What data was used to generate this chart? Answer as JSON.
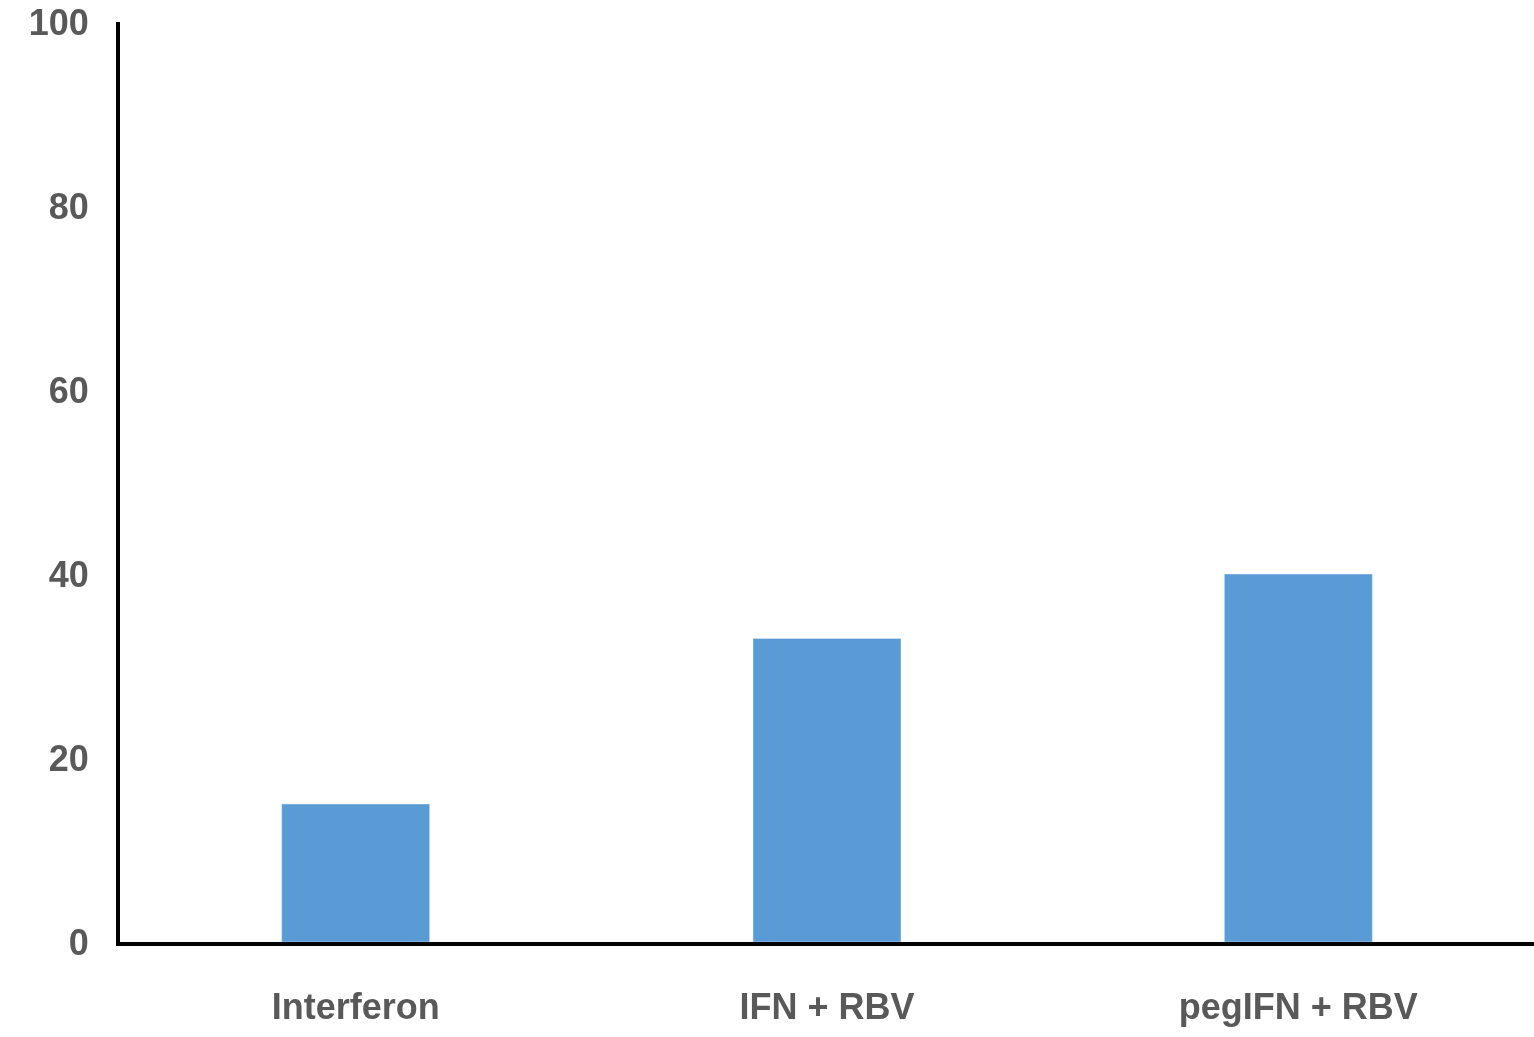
{
  "chart_data": {
    "type": "bar",
    "categories": [
      "Interferon",
      "IFN + RBV",
      "pegIFN + RBV"
    ],
    "values": [
      15,
      33,
      40
    ],
    "color": "#5b9bd5",
    "ylim": [
      0,
      100
    ],
    "yticks": [
      0,
      20,
      40,
      60,
      80,
      100
    ]
  }
}
